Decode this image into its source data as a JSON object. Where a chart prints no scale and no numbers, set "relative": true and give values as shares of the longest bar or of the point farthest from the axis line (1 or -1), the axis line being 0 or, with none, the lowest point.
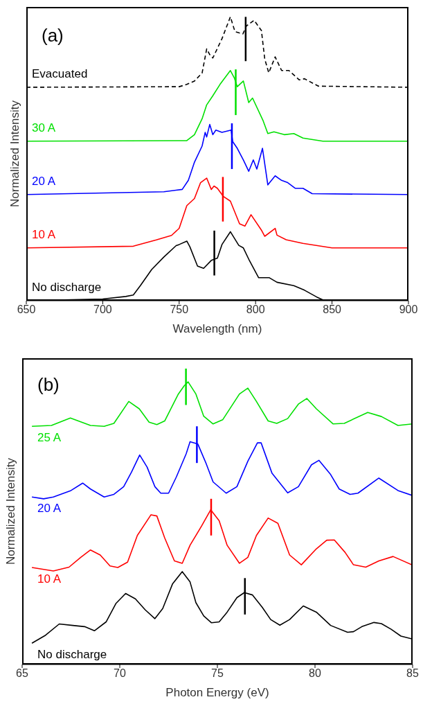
{
  "chart_data": [
    {
      "type": "line",
      "title": "(a)",
      "xlabel": "Wavelength (nm)",
      "ylabel": "Normalized Intensity",
      "relative": true,
      "xlim": [
        650,
        900
      ],
      "xticks": [
        650,
        700,
        750,
        800,
        850,
        900
      ],
      "series": [
        {
          "name": "No discharge",
          "color": "#000000",
          "x": [
            650,
            700,
            715,
            720,
            724.6,
            732,
            740,
            748,
            750,
            755,
            757,
            762,
            766,
            771,
            775,
            778,
            783.5,
            789,
            792,
            796,
            802,
            809,
            814,
            825,
            832,
            840,
            844,
            850,
            900
          ],
          "values": [
            0,
            0.006,
            0.015,
            0.02,
            0.053,
            0.11,
            0.154,
            0.194,
            0.198,
            0.21,
            0.19,
            0.122,
            0.114,
            0.142,
            0.15,
            0.198,
            0.243,
            0.195,
            0.186,
            0.141,
            0.081,
            0.081,
            0.065,
            0.053,
            0.037,
            0.013,
            0.003,
            0,
            0
          ]
        },
        {
          "color": "#000000",
          "x": [
            773,
            773
          ],
          "values": [
            0.089,
            0.247
          ]
        },
        {
          "name": "10 A",
          "color": "#ff0000",
          "x": [
            650,
            720,
            735,
            745,
            750,
            755,
            760,
            764,
            768,
            771,
            772.8,
            775,
            779,
            783.5,
            789.5,
            793,
            797,
            804,
            806,
            812.8,
            814,
            820,
            831,
            850,
            900
          ],
          "values": [
            0.186,
            0.192,
            0.214,
            0.23,
            0.255,
            0.335,
            0.36,
            0.416,
            0.432,
            0.392,
            0.404,
            0.396,
            0.367,
            0.351,
            0.271,
            0.263,
            0.303,
            0.247,
            0.227,
            0.255,
            0.231,
            0.215,
            0.202,
            0.186,
            0.186
          ]
        },
        {
          "color": "#ff0000",
          "x": [
            778.6,
            778.6
          ],
          "values": [
            0.279,
            0.436
          ]
        },
        {
          "name": "20 A",
          "color": "#0000ff",
          "x": [
            650,
            740,
            752,
            756,
            760,
            765,
            767,
            768,
            770,
            772,
            774,
            778,
            784,
            785,
            788,
            792,
            795.5,
            798.5,
            800.8,
            804.5,
            808,
            812.8,
            817,
            821,
            826,
            831,
            837,
            900
          ],
          "values": [
            0.374,
            0.384,
            0.392,
            0.424,
            0.488,
            0.545,
            0.593,
            0.577,
            0.621,
            0.585,
            0.601,
            0.593,
            0.601,
            0.561,
            0.537,
            0.496,
            0.456,
            0.496,
            0.464,
            0.537,
            0.408,
            0.44,
            0.424,
            0.416,
            0.396,
            0.396,
            0.377,
            0.374
          ]
        },
        {
          "color": "#0000ff",
          "x": [
            784.5,
            784.5
          ],
          "values": [
            0.464,
            0.625
          ]
        },
        {
          "name": "30 A",
          "color": "#00e000",
          "x": [
            650,
            755,
            760,
            765,
            768,
            772,
            776.7,
            783.5,
            786,
            788,
            792,
            795.5,
            798,
            805,
            808,
            812,
            818.8,
            825,
            831,
            844,
            900
          ],
          "values": [
            0.562,
            0.564,
            0.585,
            0.641,
            0.69,
            0.722,
            0.762,
            0.811,
            0.786,
            0.754,
            0.774,
            0.698,
            0.714,
            0.633,
            0.589,
            0.595,
            0.585,
            0.589,
            0.573,
            0.562,
            0.562
          ]
        },
        {
          "color": "#00e000",
          "x": [
            787,
            787
          ],
          "values": [
            0.654,
            0.815
          ]
        },
        {
          "name": "Evacuated",
          "color": "#000000",
          "line_style": "dashed",
          "x": [
            650,
            750,
            755,
            760,
            765,
            768,
            770,
            772,
            778,
            783.5,
            786.5,
            791.7,
            794,
            799,
            803.8,
            806,
            808.6,
            812.8,
            817,
            821.8,
            828.6,
            832,
            841,
            900
          ],
          "values": [
            0.752,
            0.754,
            0.762,
            0.774,
            0.802,
            0.887,
            0.867,
            0.855,
            0.923,
            1.0,
            0.948,
            0.94,
            0.968,
            0.988,
            0.952,
            0.851,
            0.803,
            0.859,
            0.811,
            0.811,
            0.778,
            0.782,
            0.756,
            0.752
          ]
        },
        {
          "color": "#000000",
          "x": [
            793.5,
            793.5
          ],
          "values": [
            0.844,
            1.0
          ]
        }
      ]
    },
    {
      "type": "line",
      "title": "(b)",
      "xlabel": "Photon Energy (eV)",
      "ylabel": "Normalized Intensity",
      "relative": true,
      "xlim": [
        65,
        85
      ],
      "xticks": [
        65,
        70,
        75,
        80,
        85
      ],
      "series": [
        {
          "name": "No discharge",
          "color": "#000000",
          "x": [
            65.5,
            66.2,
            66.9,
            67.6,
            68.2,
            68.7,
            69.3,
            69.8,
            70.3,
            70.8,
            71.3,
            71.8,
            72.2,
            72.7,
            73.2,
            73.6,
            73.9,
            74.3,
            74.7,
            75.09,
            75.5,
            76,
            76.38,
            76.8,
            77.3,
            77.73,
            78.2,
            78.7,
            79.4,
            80.07,
            80.8,
            81.67,
            81.97,
            82.4,
            83.02,
            83.4,
            83.9,
            84.4,
            85
          ],
          "values": [
            0.072,
            0.099,
            0.137,
            0.132,
            0.128,
            0.114,
            0.144,
            0.206,
            0.24,
            0.222,
            0.185,
            0.155,
            0.189,
            0.272,
            0.314,
            0.279,
            0.209,
            0.164,
            0.141,
            0.144,
            0.177,
            0.226,
            0.243,
            0.235,
            0.193,
            0.152,
            0.133,
            0.152,
            0.198,
            0.177,
            0.132,
            0.109,
            0.111,
            0.128,
            0.142,
            0.138,
            0.119,
            0.096,
            0.086
          ]
        },
        {
          "color": "#000000",
          "x": [
            76.41,
            76.41
          ],
          "values": [
            0.169,
            0.292
          ]
        },
        {
          "name": "10 A",
          "color": "#ff0000",
          "x": [
            65.5,
            66.6,
            67.4,
            68,
            68.5,
            69,
            69.5,
            69.9,
            70.4,
            70.9,
            71.6,
            71.9,
            72.3,
            72.8,
            73.2,
            73.6,
            74.2,
            74.66,
            75.09,
            75.5,
            76.13,
            76.56,
            77,
            77.6,
            78.1,
            78.7,
            79.3,
            80.07,
            80.6,
            80.99,
            81.54,
            81.97,
            82.6,
            83.27,
            84,
            85
          ],
          "values": [
            0.328,
            0.316,
            0.329,
            0.362,
            0.387,
            0.37,
            0.333,
            0.328,
            0.346,
            0.436,
            0.506,
            0.502,
            0.428,
            0.35,
            0.342,
            0.403,
            0.469,
            0.523,
            0.486,
            0.403,
            0.342,
            0.362,
            0.436,
            0.495,
            0.477,
            0.37,
            0.337,
            0.391,
            0.42,
            0.421,
            0.379,
            0.337,
            0.329,
            0.35,
            0.365,
            0.336
          ]
        },
        {
          "color": "#ff0000",
          "x": [
            74.68,
            74.68
          ],
          "values": [
            0.436,
            0.56
          ]
        },
        {
          "name": "20 A",
          "color": "#0000ff",
          "x": [
            65.5,
            66.1,
            66.6,
            67.5,
            68.1,
            68.5,
            69.2,
            69.7,
            70.2,
            70.6,
            71.02,
            71.4,
            71.8,
            72.1,
            72.5,
            72.9,
            73.4,
            73.6,
            74,
            74.4,
            74.78,
            75.45,
            76,
            76.56,
            77.05,
            77.24,
            77.8,
            78.6,
            79.15,
            79.82,
            80.2,
            80.8,
            81.24,
            81.8,
            82.2,
            83.27,
            84.25,
            85
          ],
          "values": [
            0.566,
            0.56,
            0.566,
            0.588,
            0.613,
            0.593,
            0.566,
            0.575,
            0.601,
            0.65,
            0.708,
            0.667,
            0.601,
            0.579,
            0.579,
            0.634,
            0.712,
            0.753,
            0.745,
            0.683,
            0.617,
            0.579,
            0.601,
            0.687,
            0.749,
            0.749,
            0.646,
            0.58,
            0.601,
            0.675,
            0.69,
            0.642,
            0.593,
            0.575,
            0.579,
            0.63,
            0.588,
            0.571
          ]
        },
        {
          "color": "#0000ff",
          "x": [
            73.95,
            73.95
          ],
          "values": [
            0.681,
            0.805
          ]
        },
        {
          "name": "25 A",
          "color": "#00e000",
          "x": [
            65.5,
            66.5,
            67.47,
            68.5,
            69.2,
            69.7,
            70.46,
            71,
            71.5,
            71.9,
            72.3,
            73,
            73.3,
            73.5,
            73.9,
            74.3,
            74.78,
            75.27,
            76.13,
            76.56,
            77,
            77.6,
            78.04,
            78.6,
            79.15,
            79.58,
            80.07,
            80.93,
            81.5,
            82.7,
            83.4,
            84.25,
            85
          ],
          "values": [
            0.805,
            0.808,
            0.833,
            0.808,
            0.805,
            0.815,
            0.889,
            0.864,
            0.819,
            0.811,
            0.823,
            0.914,
            0.942,
            0.955,
            0.914,
            0.839,
            0.813,
            0.827,
            0.914,
            0.934,
            0.889,
            0.823,
            0.815,
            0.831,
            0.88,
            0.899,
            0.864,
            0.813,
            0.815,
            0.852,
            0.838,
            0.808,
            0.813
          ]
        },
        {
          "color": "#00e000",
          "x": [
            73.39,
            73.39
          ],
          "values": [
            0.877,
            1.0
          ]
        }
      ]
    }
  ]
}
